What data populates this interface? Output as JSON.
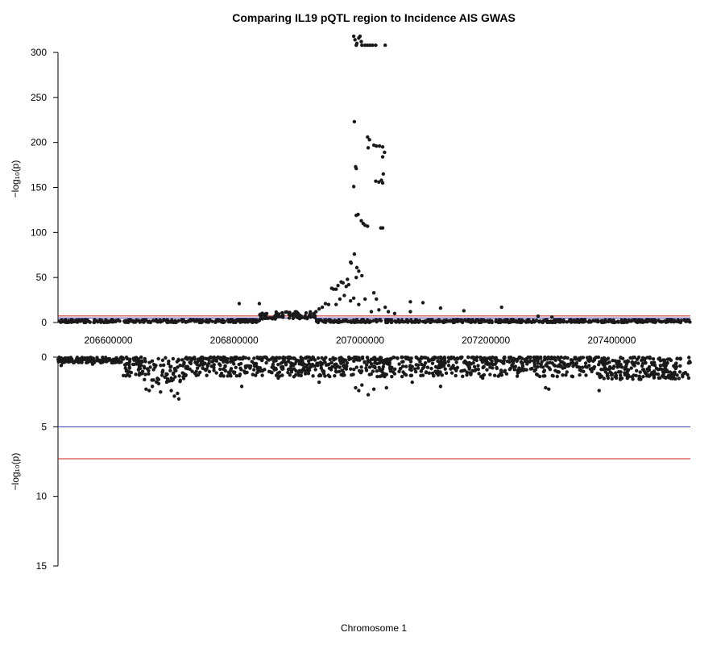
{
  "chart_data": [
    {
      "panel": "top",
      "type": "scatter",
      "title": "Comparing IL19 pQTL region to Incidence AIS GWAS",
      "ylabel": "−log₁₀(p)",
      "xlim": [
        206520000,
        207525000
      ],
      "ylim": [
        0,
        320
      ],
      "y_ticks": [
        "0",
        "50",
        "100",
        "150",
        "200",
        "250",
        "300"
      ],
      "x_ticks": [
        "206600000",
        "206800000",
        "207000000",
        "207200000",
        "207400000"
      ],
      "threshold_lines": [
        {
          "name": "suggestive",
          "y": 5,
          "color": "#3333aa"
        },
        {
          "name": "genome-wide",
          "y": 7.3,
          "color": "#cc2222"
        }
      ],
      "point_color": "#1a1a1a",
      "points": [
        [
          206990000,
          318
        ],
        [
          206992000,
          314
        ],
        [
          206995000,
          310
        ],
        [
          206998000,
          316
        ],
        [
          207000000,
          318
        ],
        [
          207002000,
          312
        ],
        [
          207003000,
          308
        ],
        [
          206994000,
          308
        ],
        [
          207008000,
          308
        ],
        [
          207012000,
          308
        ],
        [
          207016000,
          308
        ],
        [
          207020000,
          308
        ],
        [
          207025000,
          308
        ],
        [
          207040000,
          308
        ],
        [
          206991000,
          223
        ],
        [
          207012000,
          206
        ],
        [
          207015000,
          203
        ],
        [
          207022000,
          197
        ],
        [
          207026000,
          196
        ],
        [
          207031000,
          196
        ],
        [
          207036000,
          195
        ],
        [
          207039000,
          189
        ],
        [
          207036000,
          184
        ],
        [
          207013000,
          194
        ],
        [
          206993000,
          173
        ],
        [
          206994000,
          171
        ],
        [
          206990000,
          151
        ],
        [
          207037000,
          165
        ],
        [
          207025000,
          157
        ],
        [
          207030000,
          156
        ],
        [
          207034000,
          158
        ],
        [
          207036000,
          155
        ],
        [
          206994000,
          119
        ],
        [
          206997000,
          120
        ],
        [
          207002000,
          113
        ],
        [
          207005000,
          110
        ],
        [
          207008000,
          108
        ],
        [
          207012000,
          107
        ],
        [
          207033000,
          105
        ],
        [
          207036000,
          105
        ],
        [
          206991000,
          76
        ],
        [
          206985000,
          67
        ],
        [
          206986000,
          66
        ],
        [
          206995000,
          61
        ],
        [
          206998000,
          57
        ],
        [
          207003000,
          52
        ],
        [
          206994000,
          50
        ],
        [
          206980000,
          48
        ],
        [
          206973000,
          44
        ],
        [
          206970000,
          45
        ],
        [
          206965000,
          41
        ],
        [
          206962000,
          37
        ],
        [
          206958000,
          37
        ],
        [
          206955000,
          38
        ],
        [
          206978000,
          40
        ],
        [
          206982000,
          42
        ],
        [
          206975000,
          30
        ],
        [
          206968000,
          26
        ],
        [
          206962000,
          20
        ],
        [
          206950000,
          20
        ],
        [
          206945000,
          21
        ],
        [
          206940000,
          17
        ],
        [
          206935000,
          15
        ],
        [
          206930000,
          12
        ],
        [
          206985000,
          24
        ],
        [
          206990000,
          27
        ],
        [
          206998000,
          20
        ],
        [
          207008000,
          26
        ],
        [
          207022000,
          33
        ],
        [
          207026000,
          26
        ],
        [
          207018000,
          12
        ],
        [
          207030000,
          14
        ],
        [
          207040000,
          17
        ],
        [
          207045000,
          12
        ],
        [
          207055000,
          10
        ],
        [
          207080000,
          23
        ],
        [
          207100000,
          22
        ],
        [
          207080000,
          12
        ],
        [
          207128000,
          16
        ],
        [
          207165000,
          13
        ],
        [
          207225000,
          17
        ],
        [
          206808000,
          21
        ],
        [
          206840000,
          21
        ],
        [
          207283000,
          7
        ],
        [
          207305000,
          6
        ]
      ]
    },
    {
      "panel": "bottom",
      "type": "scatter",
      "title": "",
      "ylabel": "−log₁₀(p)",
      "xlabel": "Chromosome 1",
      "xlim": [
        206520000,
        207525000
      ],
      "ylim": [
        0,
        15
      ],
      "y_inverted": true,
      "y_ticks": [
        "0",
        "5",
        "10",
        "15"
      ],
      "threshold_lines": [
        {
          "name": "suggestive",
          "y": 5,
          "color": "#3333aa"
        },
        {
          "name": "genome-wide",
          "y": 7.3,
          "color": "#cc2222"
        }
      ],
      "point_color": "#1a1a1a",
      "points": [
        [
          206525000,
          0.6
        ],
        [
          206540000,
          0.3
        ],
        [
          206575000,
          0.5
        ],
        [
          206660000,
          2.3
        ],
        [
          206665000,
          2.4
        ],
        [
          206670000,
          2.1
        ],
        [
          206680000,
          1.9
        ],
        [
          206683000,
          2.5
        ],
        [
          206700000,
          2.4
        ],
        [
          206705000,
          2.8
        ],
        [
          206710000,
          2.6
        ],
        [
          206712000,
          3.0
        ],
        [
          206680000,
          1.6
        ],
        [
          206700000,
          1.5
        ],
        [
          206812000,
          2.1
        ],
        [
          206870000,
          1.5
        ],
        [
          206895000,
          1.4
        ],
        [
          206935000,
          1.8
        ],
        [
          206993000,
          2.2
        ],
        [
          206998000,
          2.4
        ],
        [
          207003000,
          2.0
        ],
        [
          207013000,
          2.7
        ],
        [
          207022000,
          2.3
        ],
        [
          207042000,
          2.2
        ],
        [
          207083000,
          1.8
        ],
        [
          207128000,
          2.1
        ],
        [
          207195000,
          1.5
        ],
        [
          207295000,
          2.2
        ],
        [
          207300000,
          2.3
        ],
        [
          207380000,
          2.4
        ],
        [
          207393000,
          1.2
        ],
        [
          207450000,
          1.4
        ],
        [
          207470000,
          1.2
        ],
        [
          207500000,
          0.7
        ]
      ]
    }
  ]
}
